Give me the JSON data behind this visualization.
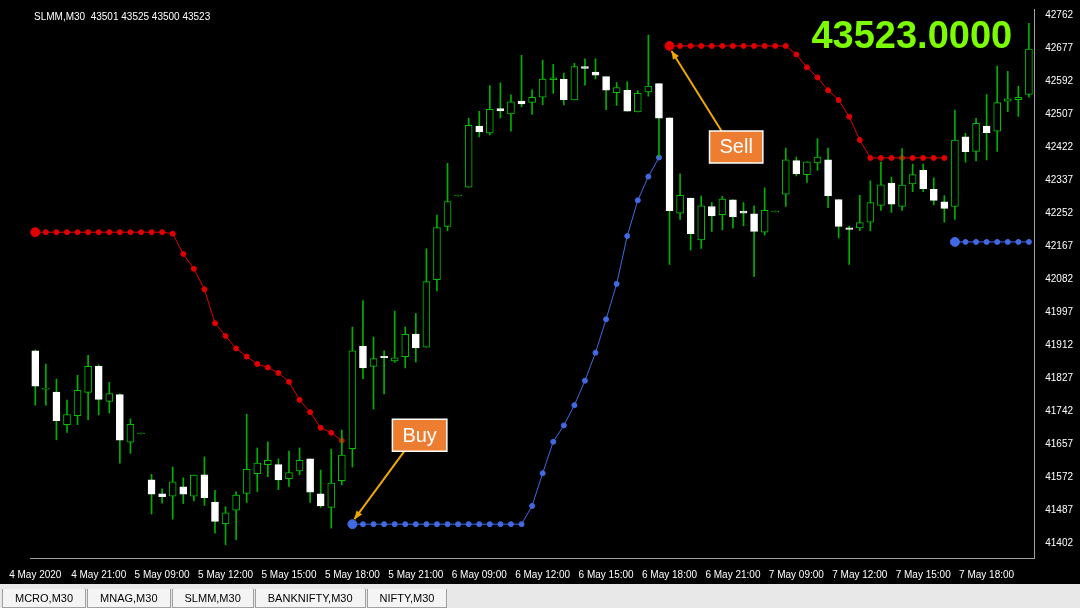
{
  "chart_data": {
    "type": "candlestick",
    "title": "SLMM,M30  43501 43525 43500 43523",
    "categories": [
      "4 May 2020",
      null,
      null,
      null,
      null,
      null,
      "4 May 21:00",
      null,
      null,
      null,
      null,
      null,
      "5 May 09:00",
      null,
      null,
      null,
      null,
      null,
      "5 May 12:00",
      null,
      null,
      null,
      null,
      null,
      "5 May 15:00",
      null,
      null,
      null,
      null,
      null,
      "5 May 18:00",
      null,
      null,
      null,
      null,
      null,
      "5 May 21:00",
      null,
      null,
      null,
      null,
      null,
      "6 May 09:00",
      null,
      null,
      null,
      null,
      null,
      "6 May 12:00",
      null,
      null,
      null,
      null,
      null,
      "6 May 15:00",
      null,
      null,
      null,
      null,
      null,
      "6 May 18:00",
      null,
      null,
      null,
      null,
      null,
      "6 May 21:00",
      null,
      null,
      null,
      null,
      null,
      "7 May 09:00",
      null,
      null,
      null,
      null,
      null,
      "7 May 12:00",
      null,
      null,
      null,
      null,
      null,
      "7 May 15:00",
      null,
      null,
      null,
      null,
      null,
      "7 May 18:00",
      null,
      null,
      null,
      null
    ],
    "ohlc": [
      [
        41898,
        41900,
        41758,
        41807
      ],
      [
        41799,
        41864,
        41758,
        41799
      ],
      [
        41792,
        41825,
        41669,
        41718
      ],
      [
        41708,
        41771,
        41688,
        41734
      ],
      [
        41731,
        41835,
        41708,
        41796
      ],
      [
        41791,
        41886,
        41721,
        41858
      ],
      [
        41858,
        41862,
        41733,
        41773
      ],
      [
        41768,
        41817,
        41738,
        41788
      ],
      [
        41785,
        41787,
        41609,
        41668
      ],
      [
        41663,
        41723,
        41634,
        41709
      ],
      [
        41684,
        41684,
        41684,
        41684
      ],
      [
        41566,
        41580,
        41478,
        41529
      ],
      [
        41530,
        41543,
        41506,
        41523
      ],
      [
        41524,
        41599,
        41465,
        41561
      ],
      [
        41548,
        41571,
        41505,
        41529
      ],
      [
        41524,
        41578,
        41512,
        41578
      ],
      [
        41579,
        41625,
        41500,
        41520
      ],
      [
        41509,
        41539,
        41429,
        41459
      ],
      [
        41453,
        41497,
        41399,
        41481
      ],
      [
        41488,
        41535,
        41412,
        41527
      ],
      [
        41531,
        41735,
        41508,
        41593
      ],
      [
        41582,
        41648,
        41536,
        41609
      ],
      [
        41605,
        41664,
        41574,
        41616
      ],
      [
        41605,
        41620,
        41541,
        41566
      ],
      [
        41569,
        41640,
        41549,
        41585
      ],
      [
        41589,
        41648,
        41579,
        41616
      ],
      [
        41620,
        41620,
        41508,
        41534
      ],
      [
        41530,
        41591,
        41495,
        41499
      ],
      [
        41495,
        41645,
        41442,
        41558
      ],
      [
        41564,
        41694,
        41553,
        41630
      ],
      [
        41646,
        41959,
        41599,
        41898
      ],
      [
        41910,
        42027,
        41826,
        41854
      ],
      [
        41858,
        41933,
        41748,
        41878
      ],
      [
        41884,
        41898,
        41787,
        41880
      ],
      [
        41872,
        42000,
        41868,
        41880
      ],
      [
        41883,
        41959,
        41854,
        41940
      ],
      [
        41941,
        41994,
        41869,
        41905
      ],
      [
        41907,
        42160,
        41907,
        42076
      ],
      [
        42081,
        42247,
        42052,
        42215
      ],
      [
        42218,
        42380,
        42206,
        42282
      ],
      [
        42296,
        42296,
        42296,
        42296
      ],
      [
        42319,
        42496,
        42319,
        42478
      ],
      [
        42476,
        42514,
        42448,
        42461
      ],
      [
        42458,
        42580,
        42453,
        42519
      ],
      [
        42521,
        42587,
        42497,
        42515
      ],
      [
        42507,
        42556,
        42463,
        42538
      ],
      [
        42540,
        42658,
        42525,
        42533
      ],
      [
        42537,
        42569,
        42506,
        42550
      ],
      [
        42550,
        42645,
        42531,
        42597
      ],
      [
        42595,
        42635,
        42560,
        42600
      ],
      [
        42597,
        42612,
        42530,
        42544
      ],
      [
        42543,
        42637,
        42543,
        42629
      ],
      [
        42629,
        42649,
        42581,
        42624
      ],
      [
        42615,
        42649,
        42597,
        42607
      ],
      [
        42603,
        42603,
        42518,
        42568
      ],
      [
        42562,
        42588,
        42529,
        42575
      ],
      [
        42568,
        42590,
        42514,
        42514
      ],
      [
        42512,
        42567,
        42512,
        42560
      ],
      [
        42564,
        42710,
        42553,
        42579
      ],
      [
        42585,
        42585,
        42397,
        42496
      ],
      [
        42497,
        42497,
        42120,
        42258
      ],
      [
        42252,
        42353,
        42236,
        42298
      ],
      [
        42291,
        42291,
        42157,
        42199
      ],
      [
        42183,
        42296,
        42161,
        42271
      ],
      [
        42269,
        42279,
        42205,
        42245
      ],
      [
        42248,
        42295,
        42209,
        42288
      ],
      [
        42286,
        42286,
        42213,
        42242
      ],
      [
        42257,
        42279,
        42219,
        42252
      ],
      [
        42250,
        42271,
        42089,
        42205
      ],
      [
        42203,
        42317,
        42195,
        42259
      ],
      [
        42255,
        42255,
        42255,
        42255
      ],
      [
        42301,
        42419,
        42269,
        42389
      ],
      [
        42387,
        42396,
        42348,
        42353
      ],
      [
        42351,
        42384,
        42331,
        42384
      ],
      [
        42381,
        42444,
        42362,
        42396
      ],
      [
        42389,
        42419,
        42266,
        42296
      ],
      [
        42287,
        42287,
        42188,
        42218
      ],
      [
        42214,
        42219,
        42120,
        42210
      ],
      [
        42214,
        42298,
        42207,
        42228
      ],
      [
        42229,
        42335,
        42207,
        42279
      ],
      [
        42272,
        42383,
        42259,
        42325
      ],
      [
        42329,
        42345,
        42254,
        42275
      ],
      [
        42269,
        42418,
        42259,
        42324
      ],
      [
        42327,
        42378,
        42307,
        42351
      ],
      [
        42362,
        42378,
        42307,
        42315
      ],
      [
        42313,
        42343,
        42273,
        42285
      ],
      [
        42281,
        42297,
        42229,
        42264
      ],
      [
        42269,
        42517,
        42236,
        42440
      ],
      [
        42448,
        42457,
        42383,
        42410
      ],
      [
        42411,
        42496,
        42386,
        42483
      ],
      [
        42476,
        42557,
        42389,
        42459
      ],
      [
        42463,
        42630,
        42411,
        42536
      ],
      [
        42540,
        42617,
        42513,
        42546
      ],
      [
        42544,
        42578,
        42501,
        42550
      ],
      [
        42557,
        42740,
        42550,
        42674
      ]
    ],
    "series": [
      {
        "type": "line",
        "color": "#e00000",
        "values": [
          42203,
          42203,
          42203,
          42203,
          42203,
          42203,
          42203,
          42203,
          42203,
          42203,
          42203,
          42203,
          42203,
          42199,
          42147,
          42109,
          42056,
          41969,
          41936,
          41904,
          41883,
          41864,
          41855,
          41841,
          41818,
          41772,
          41740,
          41700,
          41687,
          41667,
          null,
          null,
          null,
          null,
          null,
          null,
          null,
          null,
          null,
          null,
          null,
          null,
          null,
          null,
          null,
          null,
          null,
          null,
          null,
          null,
          null,
          null,
          null,
          null,
          null,
          null,
          null,
          null,
          null,
          null,
          42682,
          42682,
          42682,
          42682,
          42682,
          42682,
          42682,
          42682,
          42682,
          42682,
          42682,
          42682,
          42660,
          42627,
          42601,
          42568,
          42543,
          42500,
          42440,
          42394,
          42394,
          42394,
          42394,
          42394,
          42394,
          42394,
          42394,
          null,
          null,
          null,
          null,
          null,
          null,
          null,
          null
        ]
      },
      {
        "type": "line",
        "color": "#4169e1",
        "values": [
          null,
          null,
          null,
          null,
          null,
          null,
          null,
          null,
          null,
          null,
          null,
          null,
          null,
          null,
          null,
          null,
          null,
          null,
          null,
          null,
          null,
          null,
          null,
          null,
          null,
          null,
          null,
          null,
          null,
          null,
          41452,
          41452,
          41452,
          41452,
          41452,
          41452,
          41452,
          41452,
          41452,
          41452,
          41452,
          41452,
          41452,
          41452,
          41452,
          41452,
          41452,
          41499,
          41583,
          41664,
          41706,
          41758,
          41821,
          41893,
          41979,
          42070,
          42193,
          42285,
          42346,
          42395,
          null,
          null,
          null,
          null,
          null,
          null,
          null,
          null,
          null,
          null,
          null,
          null,
          null,
          null,
          null,
          null,
          null,
          null,
          null,
          null,
          null,
          null,
          null,
          null,
          null,
          null,
          null,
          42178,
          42178,
          42178,
          42178,
          42178,
          42178,
          42178,
          42178
        ]
      }
    ],
    "marker": "circle",
    "ylim": [
      41365,
      42777
    ],
    "yticks": [
      41402,
      41487,
      41572,
      41657,
      41742,
      41827,
      41912,
      41997,
      42082,
      42167,
      42252,
      42337,
      42422,
      42507,
      42592,
      42677,
      42762
    ],
    "annotations": [
      "43523.0000",
      "MCRO,M30",
      "MNAG,M30",
      "SLMM,M30",
      "BANKNIFTY,M30",
      "NIFTY,M30",
      {
        "text": "Buy",
        "x": "5 May 18:00",
        "y": 41452
      },
      {
        "text": "Sell",
        "x": "6 May 18:00",
        "y": 42682
      }
    ]
  }
}
